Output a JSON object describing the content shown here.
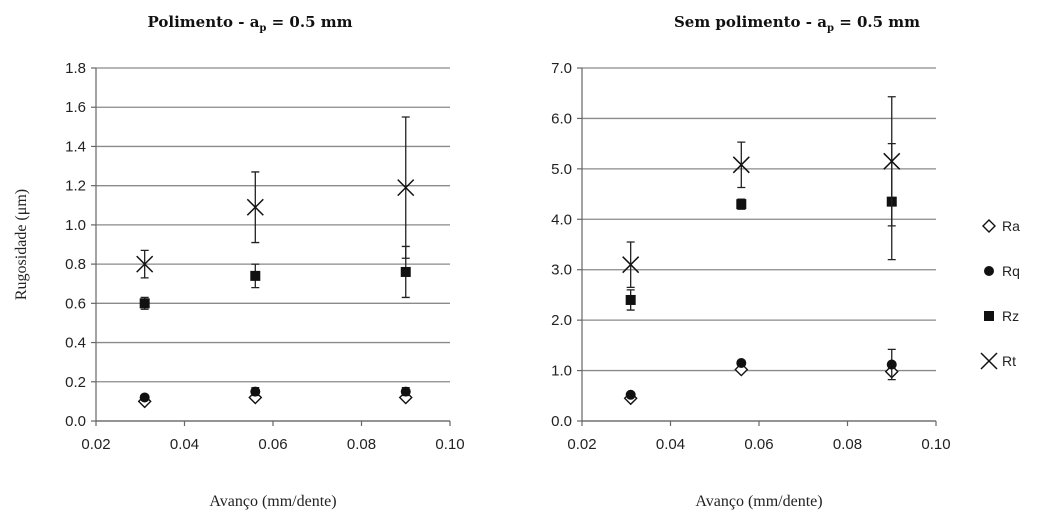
{
  "chart_data": [
    {
      "type": "scatter",
      "title": "Polimento - a",
      "title_subscript": "p",
      "title_suffix": " = 0.5 mm",
      "xlabel": "Avanço (mm/dente)",
      "ylabel": "Rugosidade (μm)",
      "xlim": [
        0.02,
        0.1
      ],
      "ylim": [
        0.0,
        1.8
      ],
      "xticks": [
        "0.02",
        "0.04",
        "0.06",
        "0.08",
        "0.10"
      ],
      "yticks": [
        "0.0",
        "0.2",
        "0.4",
        "0.6",
        "0.8",
        "1.0",
        "1.2",
        "1.4",
        "1.6",
        "1.8"
      ],
      "grid": "horizontal",
      "series": [
        {
          "name": "Ra",
          "marker": "diamond-open",
          "points": [
            {
              "x": 0.031,
              "y": 0.1,
              "err": 0.01
            },
            {
              "x": 0.056,
              "y": 0.12,
              "err": 0.01
            },
            {
              "x": 0.09,
              "y": 0.12,
              "err": 0.01
            }
          ]
        },
        {
          "name": "Rq",
          "marker": "circle",
          "points": [
            {
              "x": 0.031,
              "y": 0.12,
              "err": 0.01
            },
            {
              "x": 0.056,
              "y": 0.15,
              "err": 0.02
            },
            {
              "x": 0.09,
              "y": 0.15,
              "err": 0.02
            }
          ]
        },
        {
          "name": "Rz",
          "marker": "square",
          "points": [
            {
              "x": 0.031,
              "y": 0.6,
              "err": 0.03
            },
            {
              "x": 0.056,
              "y": 0.74,
              "err": 0.06
            },
            {
              "x": 0.09,
              "y": 0.76,
              "err": 0.13
            }
          ]
        },
        {
          "name": "Rt",
          "marker": "x",
          "points": [
            {
              "x": 0.031,
              "y": 0.8,
              "err": 0.07
            },
            {
              "x": 0.056,
              "y": 1.09,
              "err": 0.18
            },
            {
              "x": 0.09,
              "y": 1.19,
              "err": 0.36
            }
          ]
        }
      ]
    },
    {
      "type": "scatter",
      "title": "Sem polimento - a",
      "title_subscript": "p",
      "title_suffix": " = 0.5 mm",
      "xlabel": "Avanço (mm/dente)",
      "ylabel": "",
      "xlim": [
        0.02,
        0.1
      ],
      "ylim": [
        0.0,
        7.0
      ],
      "xticks": [
        "0.02",
        "0.04",
        "0.06",
        "0.08",
        "0.10"
      ],
      "yticks": [
        "0.0",
        "1.0",
        "2.0",
        "3.0",
        "4.0",
        "5.0",
        "6.0",
        "7.0"
      ],
      "grid": "horizontal",
      "series": [
        {
          "name": "Ra",
          "marker": "diamond-open",
          "points": [
            {
              "x": 0.031,
              "y": 0.45,
              "err": 0.03
            },
            {
              "x": 0.056,
              "y": 1.02,
              "err": 0.04
            },
            {
              "x": 0.09,
              "y": 0.98,
              "err": 0.05
            }
          ]
        },
        {
          "name": "Rq",
          "marker": "circle",
          "points": [
            {
              "x": 0.031,
              "y": 0.52,
              "err": 0.04
            },
            {
              "x": 0.056,
              "y": 1.15,
              "err": 0.05
            },
            {
              "x": 0.09,
              "y": 1.12,
              "err": 0.3
            }
          ]
        },
        {
          "name": "Rz",
          "marker": "square",
          "points": [
            {
              "x": 0.031,
              "y": 2.4,
              "err": 0.2
            },
            {
              "x": 0.056,
              "y": 4.3,
              "err": 0.1
            },
            {
              "x": 0.09,
              "y": 4.35,
              "err": 1.15
            }
          ]
        },
        {
          "name": "Rt",
          "marker": "x",
          "points": [
            {
              "x": 0.031,
              "y": 3.1,
              "err": 0.45
            },
            {
              "x": 0.056,
              "y": 5.08,
              "err": 0.45
            },
            {
              "x": 0.09,
              "y": 5.15,
              "err": 1.28
            }
          ]
        }
      ]
    }
  ],
  "legend": {
    "placement": "right",
    "items": [
      {
        "label": "Ra",
        "marker": "diamond-open"
      },
      {
        "label": "Rq",
        "marker": "circle"
      },
      {
        "label": "Rz",
        "marker": "square"
      },
      {
        "label": "Rt",
        "marker": "x"
      }
    ]
  },
  "colors": {
    "marker": "#111111",
    "grid": "#8a8a8a",
    "text": "#222222"
  }
}
